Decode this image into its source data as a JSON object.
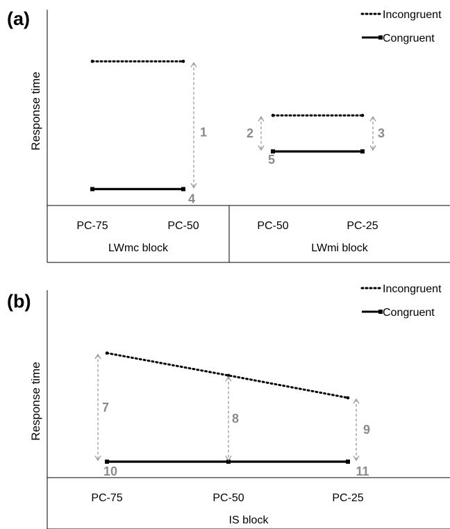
{
  "chart_data": [
    {
      "type": "line",
      "panel_label": "(a)",
      "ylabel": "Response time",
      "legend": [
        "Incongruent",
        "Congruent"
      ],
      "legend_position": "top-right",
      "groups": [
        {
          "label": "LWmc block",
          "categories": [
            "PC-75",
            "PC-50"
          ]
        },
        {
          "label": "LWmi block",
          "categories": [
            "PC-50",
            "PC-25"
          ]
        }
      ],
      "series": [
        {
          "name": "Incongruent",
          "style": "dotted",
          "segments": [
            {
              "group": 0,
              "values": [
                0.88,
                0.88
              ]
            },
            {
              "group": 1,
              "values": [
                0.55,
                0.55
              ]
            }
          ]
        },
        {
          "name": "Congruent",
          "style": "solid",
          "segments": [
            {
              "group": 0,
              "values": [
                0.1,
                0.1
              ]
            },
            {
              "group": 1,
              "values": [
                0.33,
                0.33
              ]
            }
          ]
        }
      ],
      "annotations": [
        {
          "text": "1",
          "group": 0,
          "index": 1,
          "kind": "arrow",
          "from": 0.88,
          "to": 0.1
        },
        {
          "text": "2",
          "group": 1,
          "index": 0,
          "kind": "arrow",
          "from": 0.55,
          "to": 0.33
        },
        {
          "text": "3",
          "group": 1,
          "index": 1,
          "kind": "arrow",
          "from": 0.55,
          "to": 0.33
        },
        {
          "text": "4",
          "group": 0,
          "index": 1,
          "kind": "label",
          "at": 0.1
        },
        {
          "text": "5",
          "group": 1,
          "index": 0,
          "kind": "label",
          "at": 0.33
        }
      ]
    },
    {
      "type": "line",
      "panel_label": "(b)",
      "ylabel": "Response time",
      "legend": [
        "Incongruent",
        "Congruent"
      ],
      "legend_position": "top-right",
      "groups": [
        {
          "label": "IS block",
          "categories": [
            "PC-75",
            "PC-50",
            "PC-25"
          ]
        }
      ],
      "series": [
        {
          "name": "Incongruent",
          "style": "dotted",
          "segments": [
            {
              "group": 0,
              "values": [
                0.78,
                0.64,
                0.5
              ]
            }
          ]
        },
        {
          "name": "Congruent",
          "style": "solid",
          "segments": [
            {
              "group": 0,
              "values": [
                0.1,
                0.1,
                0.1
              ]
            }
          ]
        }
      ],
      "annotations": [
        {
          "text": "7",
          "group": 0,
          "index": 0,
          "kind": "arrow",
          "from": 0.78,
          "to": 0.1
        },
        {
          "text": "8",
          "group": 0,
          "index": 1,
          "kind": "arrow",
          "from": 0.64,
          "to": 0.1
        },
        {
          "text": "9",
          "group": 0,
          "index": 2,
          "kind": "arrow",
          "from": 0.5,
          "to": 0.1
        },
        {
          "text": "10",
          "group": 0,
          "index": 0,
          "kind": "label",
          "at": 0.1
        },
        {
          "text": "11",
          "group": 0,
          "index": 2,
          "kind": "label",
          "at": 0.1
        }
      ]
    }
  ]
}
